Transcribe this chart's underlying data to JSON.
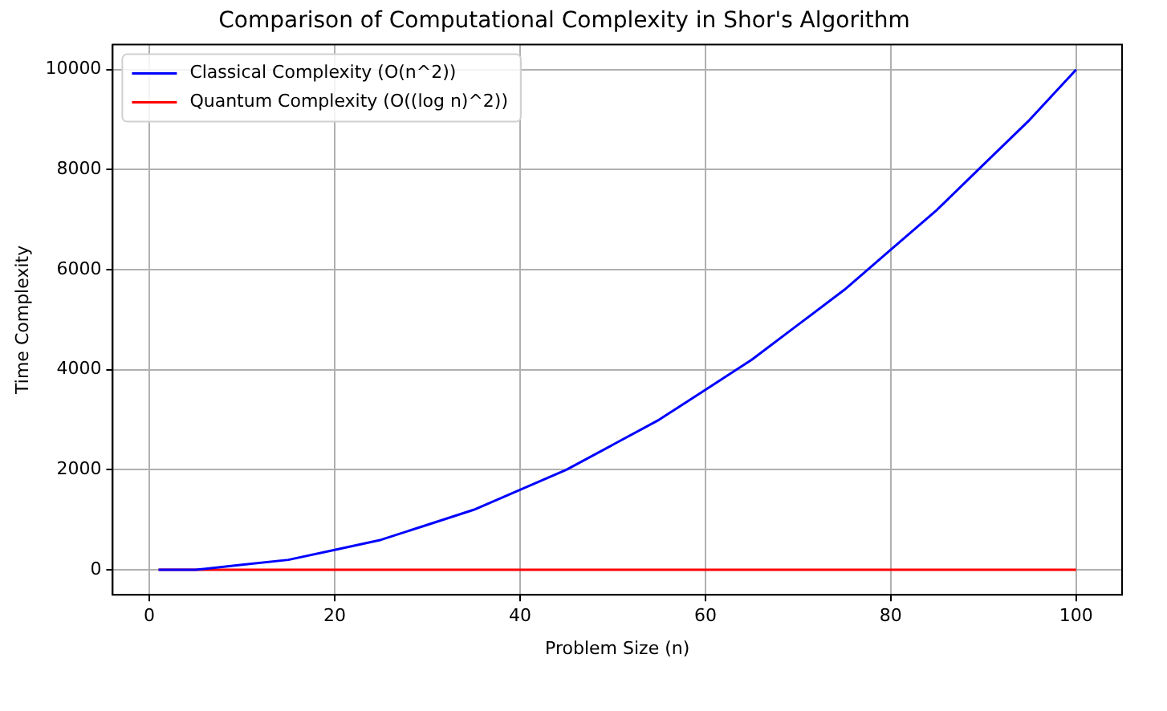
{
  "chart_data": {
    "type": "line",
    "title": "Comparison of Computational Complexity in Shor's Algorithm",
    "xlabel": "Problem Size (n)",
    "ylabel": "Time Complexity",
    "xlim": [
      -3.95,
      104.95
    ],
    "xticks": [
      0,
      20,
      40,
      60,
      80,
      100
    ],
    "ylim": [
      -499,
      10500
    ],
    "yticks": [
      0,
      2000,
      4000,
      6000,
      8000,
      10000
    ],
    "grid": true,
    "legend": "top left",
    "marker": "none",
    "line_style": "solid",
    "series": [
      {
        "name": "Classical Complexity (O(n^2))",
        "color": "#0000ff",
        "x": [
          1,
          5,
          10,
          15,
          20,
          25,
          30,
          35,
          40,
          45,
          50,
          55,
          60,
          65,
          70,
          75,
          80,
          85,
          90,
          95,
          100
        ],
        "values": [
          0,
          0,
          100,
          200,
          400,
          600,
          900,
          1200,
          1600,
          2000,
          2500,
          3000,
          3600,
          4200,
          4900,
          5600,
          6400,
          7200,
          8100,
          9000,
          10000
        ]
      },
      {
        "name": "Quantum Complexity (O((log n)^2))",
        "color": "#ff0000",
        "x": [
          1,
          20,
          40,
          60,
          80,
          100
        ],
        "values": [
          0,
          0,
          0,
          0,
          0,
          0
        ]
      }
    ]
  }
}
